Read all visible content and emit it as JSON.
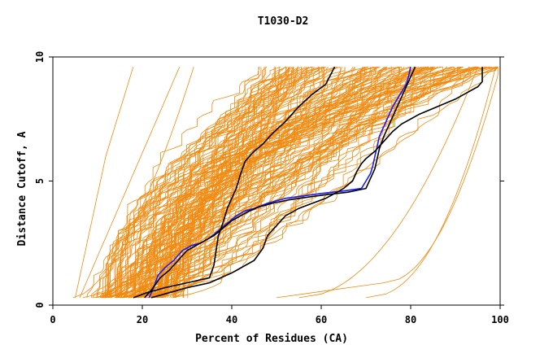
{
  "chart_data": {
    "type": "line",
    "title": "T1030-D2",
    "xlabel": "Percent of Residues (CA)",
    "ylabel": "Distance Cutoff, A",
    "xlim": [
      0,
      100
    ],
    "ylim": [
      0,
      10
    ],
    "x_ticks": [
      0,
      20,
      40,
      60,
      80,
      100
    ],
    "y_ticks": [
      0,
      5,
      10
    ],
    "grid": false,
    "colors": {
      "many_models": "#f08a10",
      "highlight_black": "#000000",
      "highlight_blue": "#1a1aff",
      "axis": "#000000"
    },
    "series": [
      {
        "color": "#1a1aff",
        "x": [
          21.5,
          22.5,
          23.5,
          25,
          27,
          29,
          31,
          33,
          35,
          37,
          39,
          41,
          43,
          45,
          48,
          52,
          56,
          60,
          65,
          69,
          70,
          71,
          71.5,
          72,
          72.5,
          73,
          74,
          75,
          76,
          77,
          78,
          79,
          79.5,
          80
        ],
        "y": [
          0.3,
          0.7,
          1.2,
          1.5,
          1.8,
          2.2,
          2.4,
          2.5,
          2.7,
          3.0,
          3.3,
          3.6,
          3.8,
          3.9,
          4.1,
          4.3,
          4.4,
          4.5,
          4.6,
          4.7,
          5.0,
          5.3,
          5.6,
          6.0,
          6.4,
          6.8,
          7.2,
          7.6,
          8.0,
          8.3,
          8.6,
          8.9,
          9.2,
          9.6
        ]
      },
      {
        "color": "#000000",
        "x": [
          20.5,
          22,
          24,
          26,
          28,
          30,
          32,
          34,
          36,
          38,
          40,
          42,
          44,
          46,
          49,
          53,
          57,
          61,
          66,
          70,
          71,
          72,
          72.5,
          73,
          74,
          75,
          76,
          77,
          78,
          79,
          80,
          81
        ],
        "y": [
          0.3,
          0.6,
          1.1,
          1.4,
          1.8,
          2.2,
          2.4,
          2.6,
          2.8,
          3.1,
          3.4,
          3.6,
          3.8,
          3.95,
          4.1,
          4.25,
          4.35,
          4.45,
          4.55,
          4.7,
          5.1,
          5.5,
          5.9,
          6.3,
          6.8,
          7.2,
          7.6,
          8.0,
          8.4,
          8.8,
          9.2,
          9.6
        ]
      },
      {
        "color": "#000000",
        "x": [
          18,
          21,
          25,
          30,
          35,
          36,
          36.5,
          37,
          38,
          39,
          40,
          41,
          42,
          43,
          45,
          47,
          49,
          52,
          55,
          58,
          61,
          63
        ],
        "y": [
          0.3,
          0.5,
          0.7,
          0.9,
          1.1,
          1.6,
          2.2,
          2.8,
          3.3,
          3.9,
          4.3,
          4.7,
          5.3,
          5.8,
          6.2,
          6.5,
          6.9,
          7.4,
          8.0,
          8.5,
          8.9,
          9.6
        ]
      },
      {
        "color": "#000000",
        "x": [
          22,
          26,
          30,
          35,
          40,
          45,
          47,
          48,
          50,
          52,
          55,
          58,
          61,
          63,
          65,
          67,
          68,
          69,
          70,
          72,
          74,
          76,
          78,
          82,
          86,
          90,
          93,
          95,
          96,
          96,
          96
        ],
        "y": [
          0.3,
          0.5,
          0.7,
          0.9,
          1.3,
          1.8,
          2.3,
          2.8,
          3.2,
          3.6,
          3.9,
          4.1,
          4.3,
          4.5,
          4.7,
          5.0,
          5.4,
          5.7,
          5.9,
          6.2,
          6.6,
          7.0,
          7.3,
          7.7,
          8.0,
          8.3,
          8.6,
          8.8,
          9.0,
          9.3,
          9.6
        ]
      }
    ]
  }
}
